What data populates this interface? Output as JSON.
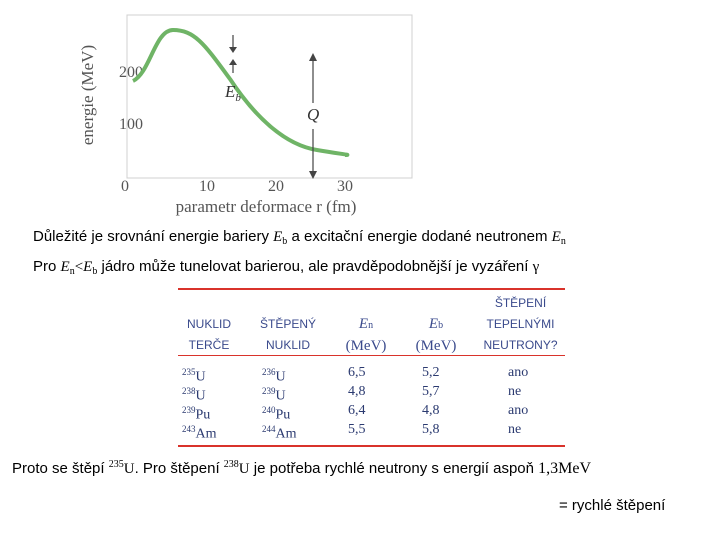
{
  "figure": {
    "ylabel": "energie (MeV)",
    "xlabel": "parametr deformace r (fm)",
    "yticks": [
      "200",
      "100",
      "0"
    ],
    "xticks": [
      "10",
      "20",
      "30"
    ],
    "label_eb": "E",
    "label_eb_sub": "b",
    "label_q": "Q",
    "curve_color": "#6fb466"
  },
  "line1": {
    "text_a": "Důležité je srovnání energie bariery ",
    "eb": "E",
    "eb_sub": "b",
    "text_b": " a excitační energie dodané neutronem ",
    "en": "E",
    "en_sub": "n"
  },
  "line2": {
    "text_a": "Pro ",
    "en": "E",
    "en_sub": "n",
    "lt": "<",
    "eb": "E",
    "eb_sub": "b",
    "text_b": " jádro může tunelovat barierou, ale pravděpodobnější je vyzáření ",
    "gamma": "γ"
  },
  "table": {
    "headers": [
      {
        "l1": "NUKLID",
        "l2": "TERČE"
      },
      {
        "l1": "ŠTĚPENÝ",
        "l2": "NUKLID"
      },
      {
        "l1": "E",
        "sub": "n",
        "l2": "(MeV)"
      },
      {
        "l1": "E",
        "sub": "b",
        "l2": "(MeV)"
      },
      {
        "l0": "ŠTĚPENÍ",
        "l1": "TEPELNÝMI",
        "l2": "NEUTRONY?"
      }
    ],
    "rows": [
      {
        "t_mass": "235",
        "t_sym": "U",
        "s_mass": "236",
        "s_sym": "U",
        "en": "6,5",
        "eb": "5,2",
        "fission": "ano"
      },
      {
        "t_mass": "238",
        "t_sym": "U",
        "s_mass": "239",
        "s_sym": "U",
        "en": "4,8",
        "eb": "5,7",
        "fission": "ne"
      },
      {
        "t_mass": "239",
        "t_sym": "Pu",
        "s_mass": "240",
        "s_sym": "Pu",
        "en": "6,4",
        "eb": "4,8",
        "fission": "ano"
      },
      {
        "t_mass": "243",
        "t_sym": "Am",
        "s_mass": "244",
        "s_sym": "Am",
        "en": "5,5",
        "eb": "5,8",
        "fission": "ne"
      }
    ],
    "rule_color": "#d9332b",
    "text_color": "#2b3a70"
  },
  "line3": {
    "text_a": "Proto se štěpí ",
    "m1": "235",
    "s1": "U",
    "text_b": ". Pro štěpení ",
    "m2": "238",
    "s2": "U",
    "text_c": " je potřeba rychlé neutrony s energií aspoň ",
    "energy": "1,3MeV"
  },
  "line4": {
    "text": "= rychlé štěpení"
  }
}
